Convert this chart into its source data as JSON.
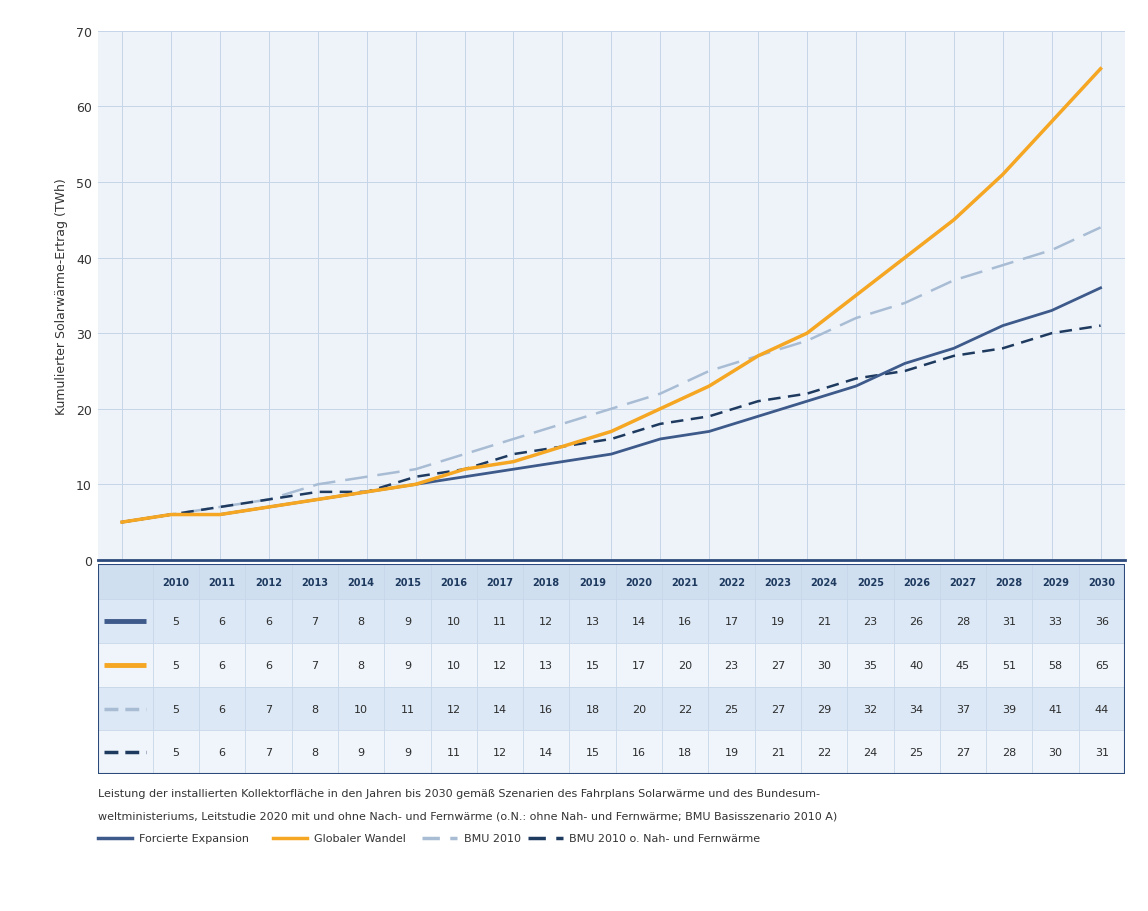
{
  "years": [
    2010,
    2011,
    2012,
    2013,
    2014,
    2015,
    2016,
    2017,
    2018,
    2019,
    2020,
    2021,
    2022,
    2023,
    2024,
    2025,
    2026,
    2027,
    2028,
    2029,
    2030
  ],
  "forcierte_expansion": [
    5,
    6,
    6,
    7,
    8,
    9,
    10,
    11,
    12,
    13,
    14,
    16,
    17,
    19,
    21,
    23,
    26,
    28,
    31,
    33,
    36
  ],
  "globaler_wandel": [
    5,
    6,
    6,
    7,
    8,
    9,
    10,
    12,
    13,
    15,
    17,
    20,
    23,
    27,
    30,
    35,
    40,
    45,
    51,
    58,
    65
  ],
  "bmu_2010": [
    5,
    6,
    7,
    8,
    10,
    11,
    12,
    14,
    16,
    18,
    20,
    22,
    25,
    27,
    29,
    32,
    34,
    37,
    39,
    41,
    44
  ],
  "bmu_2010_ohne": [
    5,
    6,
    7,
    8,
    9,
    9,
    11,
    12,
    14,
    15,
    16,
    18,
    19,
    21,
    22,
    24,
    25,
    27,
    28,
    30,
    31
  ],
  "color_forcierte": "#3d5a8a",
  "color_globaler": "#f5a623",
  "color_bmu2010": "#a8bcd4",
  "color_bmu2010_ohne": "#1e3a5f",
  "ylabel": "Kumulierter Solarwärme-Ertrag (TWh)",
  "ylim": [
    0,
    70
  ],
  "yticks": [
    0,
    10,
    20,
    30,
    40,
    50,
    60,
    70
  ],
  "bg_color": "#eef3fa",
  "grid_color": "#c5d5e8",
  "axis_color": "#2c4a7c",
  "table_header_bg": "#d0dff0",
  "table_row_alt": "#dce8f5",
  "table_row_plain": "#f0f5fb",
  "footnote_line1": "Leistung der installierten Kollektorfläche in den Jahren bis 2030 gemäß Szenarien des Fahrplans Solarwärme und des Bundesum-",
  "footnote_line2": "weltministeriums, Leitstudie 2020 mit und ohne Nach- und Fernwärme (o.N.: ohne Nah- und Fernwärme; BMU Basisszenario 2010 A)",
  "legend_labels": [
    "Forcierte Expansion",
    "Globaler Wandel",
    "BMU 2010",
    "BMU 2010 o. Nah- und Fernwärme"
  ]
}
